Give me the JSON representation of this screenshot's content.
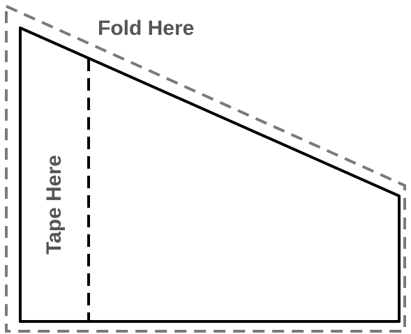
{
  "labels": {
    "fold": "Fold Here",
    "tape": "Tape Here"
  },
  "colors": {
    "background": "#ffffff",
    "cut_line": "#000000",
    "fold_line": "#7a7a7a",
    "fold_label": "#555555",
    "tape_label": "#555555"
  }
}
